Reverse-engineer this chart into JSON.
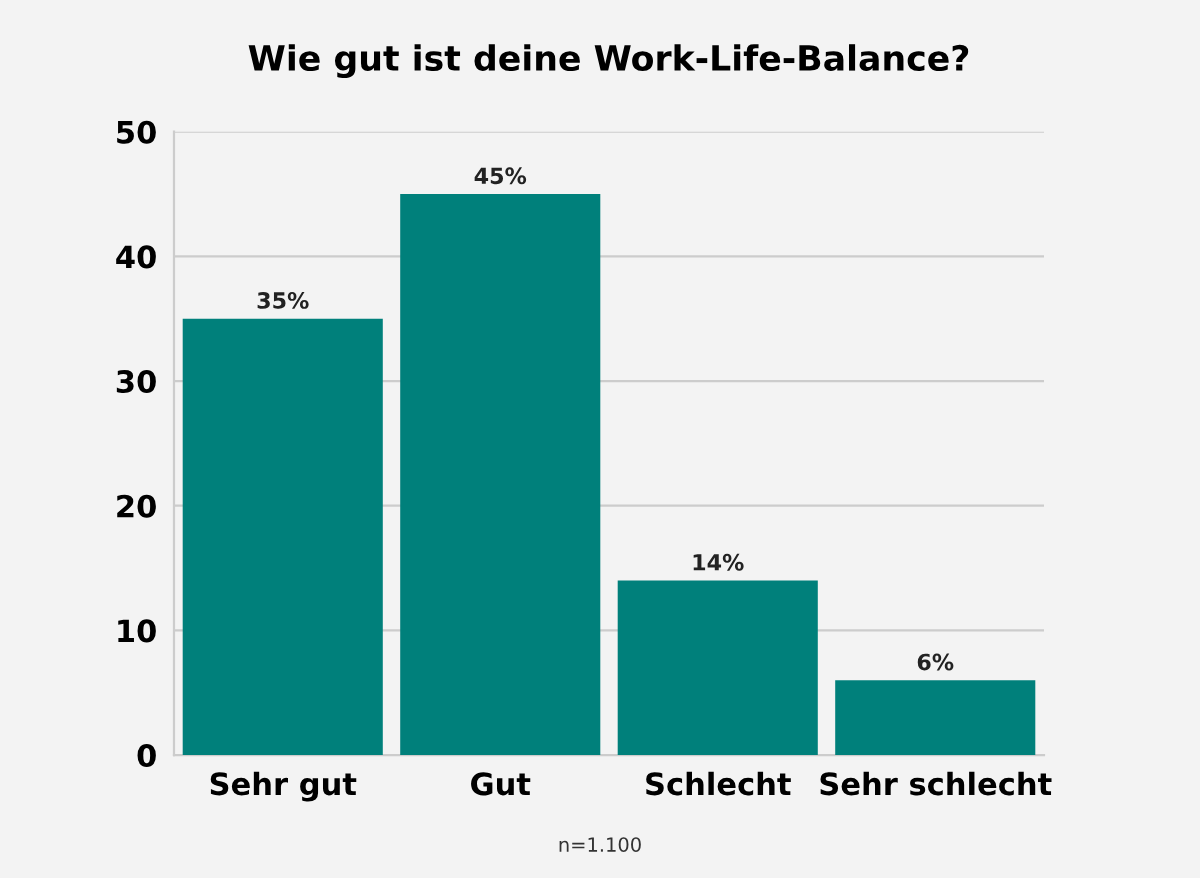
{
  "chart_data": {
    "type": "bar",
    "title": "Wie gut ist deine Work-Life-Balance?",
    "categories": [
      "Sehr gut",
      "Gut",
      "Schlecht",
      "Sehr schlecht"
    ],
    "values": [
      35,
      45,
      14,
      6
    ],
    "value_labels": [
      "35%",
      "45%",
      "14%",
      "6%"
    ],
    "color": "#00807b",
    "ylim": [
      0,
      50
    ],
    "yticks": [
      0,
      10,
      20,
      30,
      40,
      50
    ],
    "grid": "y",
    "annotations": [
      "n=1.100"
    ]
  }
}
